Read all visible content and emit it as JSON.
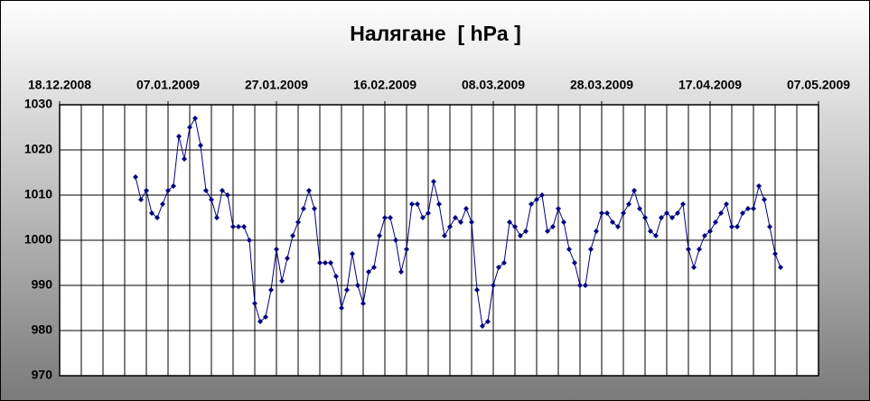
{
  "chart_data": {
    "type": "line",
    "title": "Налягане  [ hPa ]",
    "x": [
      "01.01.2009",
      "02.01.2009",
      "03.01.2009",
      "04.01.2009",
      "05.01.2009",
      "06.01.2009",
      "07.01.2009",
      "08.01.2009",
      "09.01.2009",
      "10.01.2009",
      "11.01.2009",
      "12.01.2009",
      "13.01.2009",
      "14.01.2009",
      "15.01.2009",
      "16.01.2009",
      "17.01.2009",
      "18.01.2009",
      "19.01.2009",
      "20.01.2009",
      "21.01.2009",
      "22.01.2009",
      "23.01.2009",
      "24.01.2009",
      "25.01.2009",
      "26.01.2009",
      "27.01.2009",
      "28.01.2009",
      "29.01.2009",
      "30.01.2009",
      "31.01.2009",
      "01.02.2009",
      "02.02.2009",
      "03.02.2009",
      "04.02.2009",
      "05.02.2009",
      "06.02.2009",
      "07.02.2009",
      "08.02.2009",
      "09.02.2009",
      "10.02.2009",
      "11.02.2009",
      "12.02.2009",
      "13.02.2009",
      "14.02.2009",
      "15.02.2009",
      "16.02.2009",
      "17.02.2009",
      "18.02.2009",
      "19.02.2009",
      "20.02.2009",
      "21.02.2009",
      "22.02.2009",
      "23.02.2009",
      "24.02.2009",
      "25.02.2009",
      "26.02.2009",
      "27.02.2009",
      "28.02.2009",
      "01.03.2009",
      "02.03.2009",
      "03.03.2009",
      "04.03.2009",
      "05.03.2009",
      "06.03.2009",
      "07.03.2009",
      "08.03.2009",
      "09.03.2009",
      "10.03.2009",
      "11.03.2009",
      "12.03.2009",
      "13.03.2009",
      "14.03.2009",
      "15.03.2009",
      "16.03.2009",
      "17.03.2009",
      "18.03.2009",
      "19.03.2009",
      "20.03.2009",
      "21.03.2009",
      "22.03.2009",
      "23.03.2009",
      "24.03.2009",
      "25.03.2009",
      "26.03.2009",
      "27.03.2009",
      "28.03.2009",
      "29.03.2009",
      "30.03.2009",
      "31.03.2009",
      "01.04.2009",
      "02.04.2009",
      "03.04.2009",
      "04.04.2009",
      "05.04.2009",
      "06.04.2009",
      "07.04.2009",
      "08.04.2009",
      "09.04.2009",
      "10.04.2009",
      "11.04.2009",
      "12.04.2009",
      "13.04.2009",
      "14.04.2009",
      "15.04.2009",
      "16.04.2009",
      "17.04.2009",
      "18.04.2009",
      "19.04.2009",
      "20.04.2009",
      "21.04.2009",
      "22.04.2009",
      "23.04.2009",
      "24.04.2009",
      "25.04.2009",
      "26.04.2009",
      "27.04.2009",
      "28.04.2009",
      "29.04.2009",
      "30.04.2009"
    ],
    "values": [
      1014,
      1009,
      1011,
      1006,
      1005,
      1008,
      1011,
      1012,
      1023,
      1018,
      1025,
      1027,
      1021,
      1011,
      1009,
      1005,
      1011,
      1010,
      1003,
      1003,
      1003,
      1000,
      986,
      982,
      983,
      989,
      998,
      991,
      996,
      1001,
      1004,
      1007,
      1011,
      1007,
      995,
      995,
      995,
      992,
      985,
      989,
      997,
      990,
      986,
      993,
      994,
      1001,
      1005,
      1005,
      1000,
      993,
      998,
      1008,
      1008,
      1005,
      1006,
      1013,
      1008,
      1001,
      1003,
      1005,
      1004,
      1007,
      1004,
      989,
      981,
      982,
      990,
      994,
      995,
      1004,
      1003,
      1001,
      1002,
      1008,
      1009,
      1010,
      1002,
      1003,
      1007,
      1004,
      998,
      995,
      990,
      990,
      998,
      1002,
      1006,
      1006,
      1004,
      1003,
      1006,
      1008,
      1011,
      1007,
      1005,
      1002,
      1001,
      1005,
      1006,
      1005,
      1006,
      1008,
      998,
      994,
      998,
      1001,
      1002,
      1004,
      1006,
      1008,
      1003,
      1003,
      1006,
      1007,
      1007,
      1012,
      1009,
      1003,
      997,
      994
    ],
    "color": "#000080",
    "xlim": [
      "18.12.2008",
      "07.05.2009"
    ],
    "xticks": [
      "18.12.2008",
      "07.01.2009",
      "27.01.2009",
      "16.02.2009",
      "08.03.2009",
      "28.03.2009",
      "17.04.2009",
      "07.05.2009"
    ],
    "xgrid_interval_days": 4,
    "ylim": [
      970,
      1030
    ],
    "yticks": [
      970,
      980,
      990,
      1000,
      1010,
      1020,
      1030
    ],
    "grid": true
  }
}
